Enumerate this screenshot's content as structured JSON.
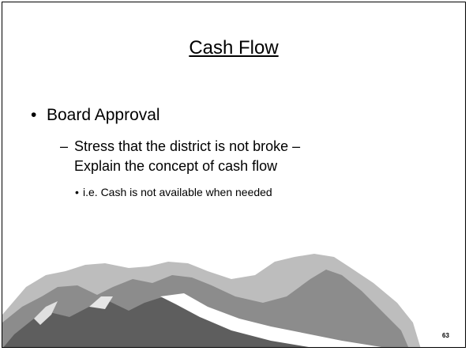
{
  "slide": {
    "title": "Cash Flow",
    "bullets": [
      {
        "text": "Board Approval",
        "items": [
          {
            "text": "Stress that the district is not broke – Explain the concept of cash flow",
            "items": [
              {
                "text": "i.e. Cash is not available when needed"
              }
            ]
          }
        ]
      }
    ],
    "page_number": "63"
  }
}
